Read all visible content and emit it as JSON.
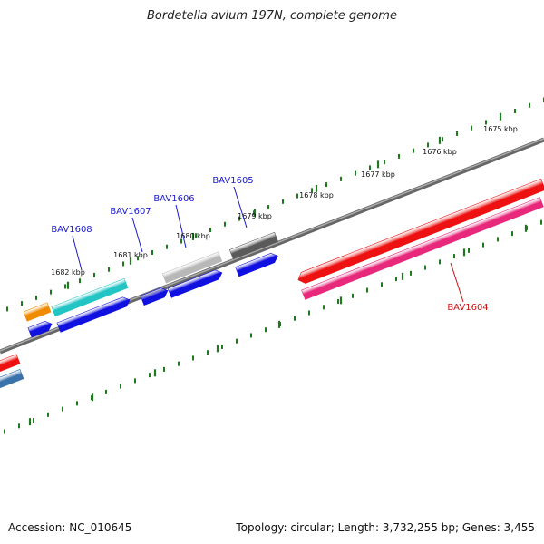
{
  "title": "Bordetella avium 197N, complete genome",
  "footer": {
    "accession": "Accession: NC_010645",
    "summary": "Topology: circular; Length: 3,732,255 bp; Genes: 3,455"
  },
  "colors": {
    "backbone": "#8a8a8a",
    "tick": "#1f7a1f",
    "label_blue": "#1a1acc",
    "label_red": "#cc1111",
    "red": "#ee1111",
    "pink": "#e8287a",
    "blue": "#1010e0",
    "cyan": "#22c4c4",
    "orange": "#f08a00",
    "lightgray": "#b8b8b8",
    "darkgray": "#5a5a5a",
    "steelblue": "#3a72aa"
  },
  "ticks": [
    {
      "label": "1675 kbp"
    },
    {
      "label": "1676 kbp"
    },
    {
      "label": "1677 kbp"
    },
    {
      "label": "1678 kbp"
    },
    {
      "label": "1679 kbp"
    },
    {
      "label": "1680 kbp"
    },
    {
      "label": "1681 kbp"
    },
    {
      "label": "1682 kbp"
    }
  ],
  "gene_labels": [
    {
      "text": "BAV1608",
      "color": "label_blue"
    },
    {
      "text": "BAV1607",
      "color": "label_blue"
    },
    {
      "text": "BAV1606",
      "color": "label_blue"
    },
    {
      "text": "BAV1605",
      "color": "label_blue"
    },
    {
      "text": "BAV1604",
      "color": "label_red"
    }
  ]
}
